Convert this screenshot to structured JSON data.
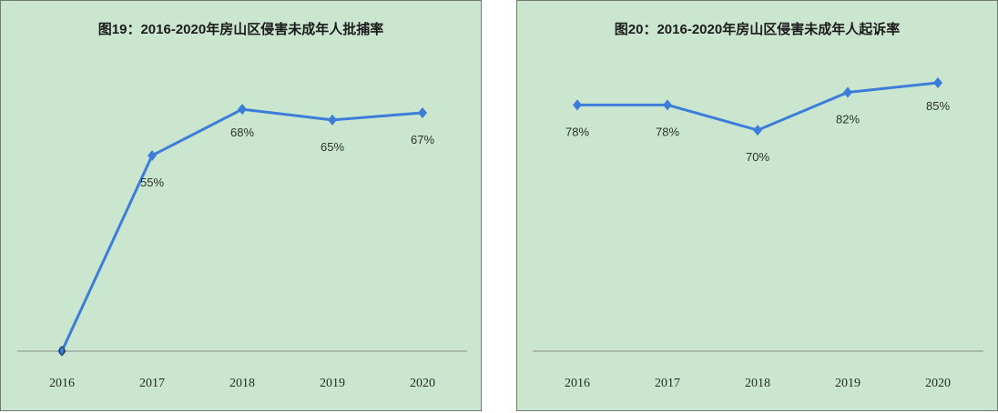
{
  "colors": {
    "background": "#cbe6cf",
    "line": "#3b7dd8",
    "axis": "#a0aaa4",
    "border": "#6f7a72"
  },
  "chart_data": [
    {
      "type": "line",
      "title": "图19：2016-2020年房山区侵害未成年人批捕率",
      "categories": [
        "2016",
        "2017",
        "2018",
        "2019",
        "2020"
      ],
      "values": [
        0,
        55,
        68,
        65,
        67
      ],
      "data_labels": [
        "0",
        "55%",
        "68%",
        "65%",
        "67%"
      ],
      "xlabel": "",
      "ylabel": "",
      "unit": "%",
      "ylim": [
        0,
        100
      ],
      "grid": false,
      "legend": "none"
    },
    {
      "type": "line",
      "title": "图20：2016-2020年房山区侵害未成年人起诉率",
      "categories": [
        "2016",
        "2017",
        "2018",
        "2019",
        "2020"
      ],
      "values": [
        78,
        78,
        70,
        82,
        85
      ],
      "data_labels": [
        "78%",
        "78%",
        "70%",
        "82%",
        "85%"
      ],
      "xlabel": "",
      "ylabel": "",
      "unit": "%",
      "ylim": [
        0,
        100
      ],
      "grid": false,
      "legend": "none"
    }
  ]
}
